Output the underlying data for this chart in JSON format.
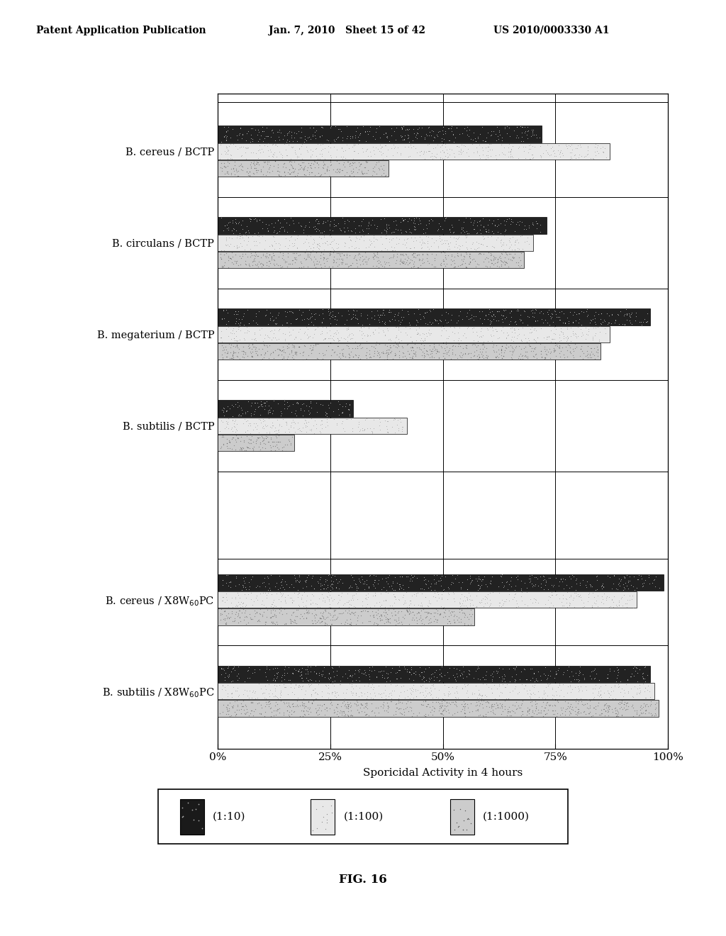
{
  "groups": [
    "B. cereus / BCTP",
    "B. circulans / BCTP",
    "B. megaterium / BCTP",
    "B. subtilis / BCTP",
    "",
    "B. cereus / X8W$_{60}$PC",
    "B. subtilis / X8W$_{60}$PC"
  ],
  "values_1_10": [
    72,
    73,
    96,
    30,
    0,
    99,
    96
  ],
  "values_1_100": [
    87,
    70,
    87,
    42,
    0,
    93,
    97
  ],
  "values_1_1000": [
    38,
    68,
    85,
    17,
    0,
    57,
    98
  ],
  "xlabel": "Sporicidal Activity in 4 hours",
  "xticks": [
    0,
    25,
    50,
    75,
    100
  ],
  "xtick_labels": [
    "0%",
    "25%",
    "50%",
    "75%",
    "100%"
  ],
  "fig_caption": "FIG. 16",
  "header_left": "Patent Application Publication",
  "header_mid": "Jan. 7, 2010   Sheet 15 of 42",
  "header_right": "US 2010/0003330 A1",
  "background_color": "#ffffff"
}
